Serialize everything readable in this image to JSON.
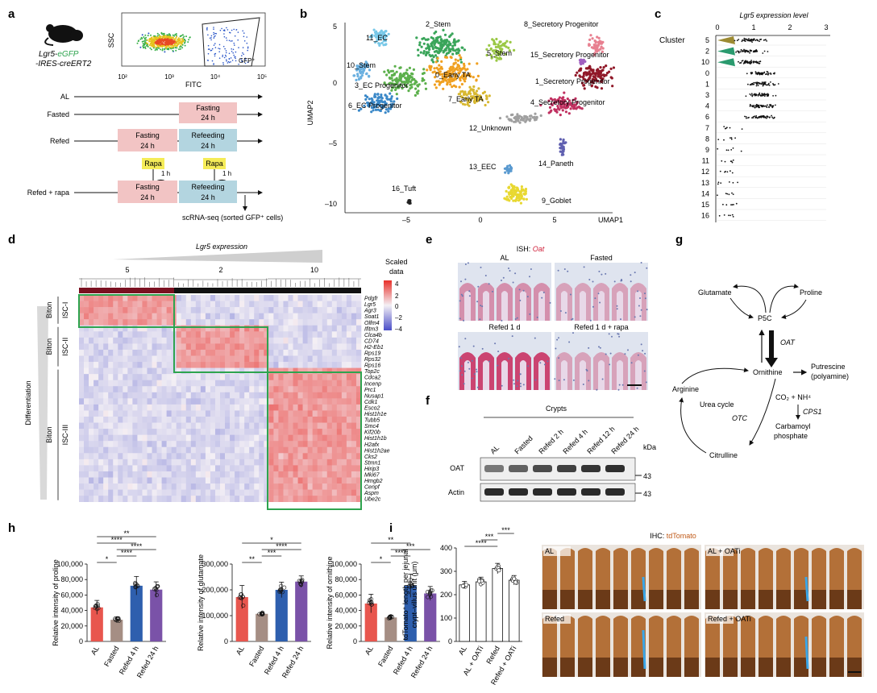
{
  "panel_letters": {
    "a": "a",
    "b": "b",
    "c": "c",
    "d": "d",
    "e": "e",
    "f": "f",
    "g": "g",
    "h": "h",
    "i": "i"
  },
  "panel_a": {
    "mouse_line1_prefix": "Lgr5-",
    "mouse_line1_gfp": "eGFP",
    "mouse_line2": "-IRES-creERT2",
    "facs_ylabel": "SSC",
    "facs_xlabel": "FITC",
    "facs_gate_label": "GFP⁺",
    "facs_ticks": [
      "10²",
      "10³",
      "10⁴",
      "10⁵"
    ],
    "rows": [
      {
        "label": "AL"
      },
      {
        "label": "Fasted",
        "boxes": [
          {
            "text1": "Fasting",
            "text2": "24 h",
            "color": "#f2c4c4"
          }
        ]
      },
      {
        "label": "Refed",
        "boxes": [
          {
            "text1": "Fasting",
            "text2": "24 h",
            "color": "#f2c4c4"
          },
          {
            "text1": "Refeeding",
            "text2": "24 h",
            "color": "#b3d5e0"
          }
        ]
      },
      {
        "label": "Refed + rapa",
        "boxes": [
          {
            "text1": "Fasting",
            "text2": "24 h",
            "color": "#f2c4c4"
          },
          {
            "text1": "Refeeding",
            "text2": "24 h",
            "color": "#b3d5e0"
          }
        ]
      }
    ],
    "rapa_label": "Rapa",
    "rapa_color": "#f5ec58",
    "one_hour": "1 h",
    "footer": "scRNA-seq (sorted GFP⁺ cells)"
  },
  "panel_b": {
    "xlabel": "UMAP1",
    "ylabel": "UMAP2",
    "xticks": [
      "–5",
      "0",
      "5"
    ],
    "yticks": [
      "5",
      "0",
      "–5",
      "–10"
    ],
    "clusters": [
      {
        "label": "2_Stem",
        "color": "#3aa55a"
      },
      {
        "label": "11_EC",
        "color": "#78c8e8"
      },
      {
        "label": "10_Stem",
        "color": "#6ab0e0"
      },
      {
        "label": "5_Stem",
        "color": "#9ac845"
      },
      {
        "label": "3_EC Progenitor",
        "color": "#5cb04c"
      },
      {
        "label": "0_Early TA",
        "color": "#f0a020"
      },
      {
        "label": "6_EC Progenitor",
        "color": "#3a88c8"
      },
      {
        "label": "7_Early TA",
        "color": "#d8b830"
      },
      {
        "label": "12_Unknown",
        "color": "#a0a0a0"
      },
      {
        "label": "8_Secretory Progenitor",
        "color": "#e88090"
      },
      {
        "label": "15_Secretory Progenitor",
        "color": "#a060c0"
      },
      {
        "label": "1_Secretory Progenitor",
        "color": "#901828"
      },
      {
        "label": "4_Secretory Progenitor",
        "color": "#c03060"
      },
      {
        "label": "14_Paneth",
        "color": "#6060b0"
      },
      {
        "label": "13_EEC",
        "color": "#5a9ad0"
      },
      {
        "label": "9_Goblet",
        "color": "#e8d830"
      },
      {
        "label": "16_Tuft",
        "color": "#202020"
      }
    ]
  },
  "panel_c": {
    "title": "Lgr5 expression level",
    "cluster_label": "Cluster",
    "xticks": [
      "0",
      "1",
      "2",
      "3"
    ],
    "clusters": [
      "5",
      "2",
      "10",
      "0",
      "1",
      "3",
      "4",
      "6",
      "7",
      "8",
      "9",
      "11",
      "12",
      "13",
      "14",
      "15",
      "16"
    ]
  },
  "panel_d": {
    "title": "Lgr5 expression",
    "y_side_label": "Differentiation",
    "groups": [
      "5",
      "2",
      "10"
    ],
    "legend_title1": "Scaled",
    "legend_title2": "data",
    "legend_ticks": [
      "4",
      "2",
      "0",
      "–2",
      "–4"
    ],
    "blocks": [
      {
        "name": "Biton ISC-I",
        "line1": "Biton",
        "line2": "ISC-I",
        "genes": [
          "Pdgfr",
          "Lgr5",
          "Agr3",
          "Soat1",
          "Olfm4"
        ]
      },
      {
        "name": "Biton ISC-II",
        "line1": "Biton",
        "line2": "ISC-II",
        "genes": [
          "Ifitm3",
          "Clca4b",
          "CD74",
          "H2-Eb1",
          "Rps19",
          "Rps32",
          "Rps16"
        ]
      },
      {
        "name": "Biton ISC-III",
        "line1": "Biton",
        "line2": "ISC-III",
        "genes": [
          "Top2c",
          "Cdca2",
          "Incenp",
          "Prc1",
          "Nusap1",
          "Cdk1",
          "Esco2",
          "Hist1h1e",
          "Tubb5",
          "Smc4",
          "Kif20b",
          "Hist1h1b",
          "H2afx",
          "Hist1h2ae",
          "Cks2",
          "Stmn1",
          "Hirip3",
          "Mki67",
          "Hmgb2",
          "Cenpf",
          "Aspm",
          "Ube2c"
        ]
      }
    ]
  },
  "panel_e": {
    "title_prefix": "ISH: ",
    "title_gene": "Oat",
    "images": [
      "AL",
      "Fasted",
      "Refed 1 d",
      "Refed 1 d + rapa"
    ]
  },
  "panel_f": {
    "header": "Crypts",
    "lanes": [
      "AL",
      "Fasted",
      "Refed 2 h",
      "Refed 4 h",
      "Refed 12 h",
      "Refed 24 h"
    ],
    "kda": "kDa",
    "bands": [
      {
        "label": "OAT",
        "kda": "43"
      },
      {
        "label": "Actin",
        "kda": "43"
      }
    ]
  },
  "panel_g": {
    "nodes": {
      "glutamate": "Glutamate",
      "proline": "Proline",
      "p5c": "P5C",
      "oat": "OAT",
      "ornithine": "Ornithine",
      "putrescine1": "Putrescine",
      "putrescine2": "(polyamine)",
      "arginine": "Arginine",
      "urea": "Urea cycle",
      "otc": "OTC",
      "co2": "CO₂ + NH⁴",
      "cps1": "CPS1",
      "carb1": "Carbamoyl",
      "carb2": "phosphate",
      "citrulline": "Citrulline"
    }
  },
  "panel_h": {
    "categories": [
      "AL",
      "Fasted",
      "Refed 4 h",
      "Refed 24 h"
    ],
    "colors": [
      "#e8564e",
      "#a58e84",
      "#2e5fae",
      "#7a52a8"
    ],
    "charts": [
      {
        "ylabel": "Relative intensity of proline",
        "yticks": [
          "0",
          "20,000",
          "40,000",
          "60,000",
          "80,000",
          "100,000"
        ],
        "ymax": 100000,
        "values": [
          44000,
          28000,
          72000,
          67000
        ],
        "errors": [
          9000,
          3500,
          12000,
          10000
        ],
        "sig": [
          {
            "a": 0,
            "b": 1,
            "t": "*"
          },
          {
            "a": 1,
            "b": 2,
            "t": "****"
          },
          {
            "a": 1,
            "b": 3,
            "t": "****"
          },
          {
            "a": 0,
            "b": 2,
            "t": "****"
          },
          {
            "a": 0,
            "b": 3,
            "t": "**"
          }
        ]
      },
      {
        "ylabel": "Relative intensity of glutamate",
        "yticks": [
          "0",
          "100,000",
          "200,000",
          "300,000"
        ],
        "ymax": 300000,
        "values": [
          172000,
          107000,
          200000,
          232000
        ],
        "errors": [
          45000,
          6000,
          30000,
          22000
        ],
        "sig": [
          {
            "a": 0,
            "b": 1,
            "t": "**"
          },
          {
            "a": 1,
            "b": 2,
            "t": "***"
          },
          {
            "a": 1,
            "b": 3,
            "t": "****"
          },
          {
            "a": 0,
            "b": 3,
            "t": "*"
          }
        ]
      },
      {
        "ylabel": "Relative intensity of ornithine",
        "yticks": [
          "0",
          "20,000",
          "40,000",
          "60,000",
          "80,000",
          "100,000"
        ],
        "ymax": 100000,
        "values": [
          49000,
          31000,
          72000,
          62000
        ],
        "errors": [
          12000,
          3000,
          15000,
          9000
        ],
        "sig": [
          {
            "a": 0,
            "b": 1,
            "t": "*"
          },
          {
            "a": 1,
            "b": 2,
            "t": "****"
          },
          {
            "a": 1,
            "b": 3,
            "t": "***"
          },
          {
            "a": 0,
            "b": 2,
            "t": "**"
          }
        ]
      }
    ]
  },
  "panel_i": {
    "ylabel1": "tdTomato⁺ length per jejunal",
    "ylabel2": "crypt–villus unit (μm)",
    "yticks": [
      "0",
      "100",
      "200",
      "300",
      "400"
    ],
    "ymax": 400,
    "categories": [
      "AL",
      "AL + OATi",
      "Refed",
      "Refed + OATi"
    ],
    "values": [
      242,
      255,
      312,
      262
    ],
    "errors": [
      15,
      20,
      22,
      20
    ],
    "colors": [
      "#ffffff",
      "#ffffff",
      "#ffffff",
      "#ffffff"
    ],
    "sig": [
      {
        "a": 0,
        "b": 2,
        "t": "****"
      },
      {
        "a": 1,
        "b": 2,
        "t": "***"
      },
      {
        "a": 2,
        "b": 3,
        "t": "***"
      }
    ],
    "ihc_prefix": "IHC: ",
    "ihc_marker": "tdTomato",
    "images": [
      "AL",
      "AL + OATi",
      "Refed",
      "Refed + OATi"
    ]
  },
  "colors": {
    "fasting": "#f2c4c4",
    "refeeding": "#b3d5e0",
    "gate_green": "#2ea44f",
    "ish_red": "#d0203a",
    "ihc_brown": "#8b4a1a"
  }
}
